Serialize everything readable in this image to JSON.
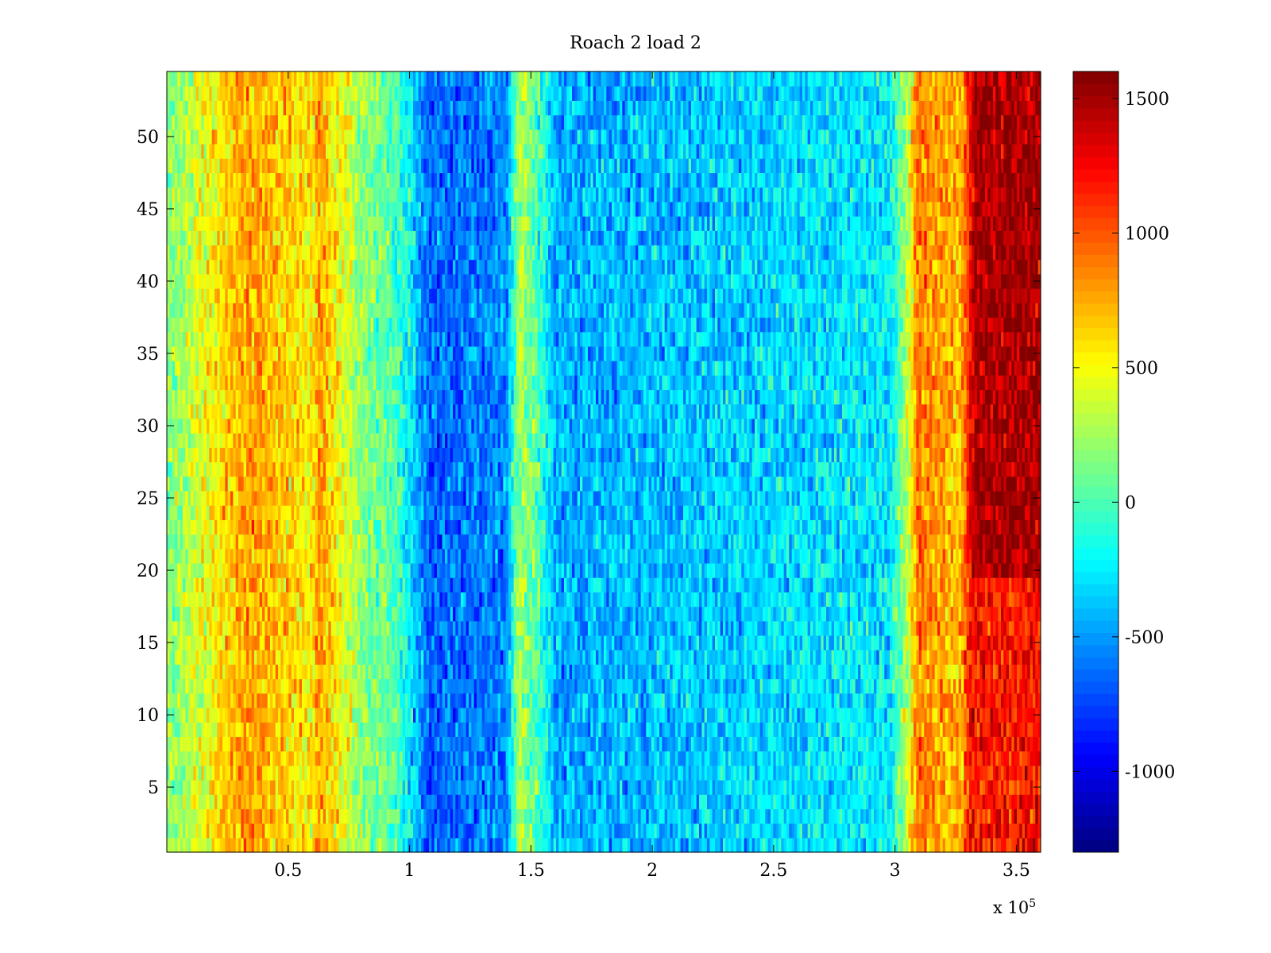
{
  "chart_data": {
    "type": "heatmap",
    "title": "Roach 2 load 2",
    "xlabel": "",
    "ylabel": "",
    "x_multiplier": "x 10",
    "x_multiplier_exponent": "5",
    "xlim": [
      0,
      360000
    ],
    "ylim": [
      0.5,
      54.5
    ],
    "x_ticks": [
      50000,
      100000,
      150000,
      200000,
      250000,
      300000,
      350000
    ],
    "x_tick_labels": [
      "0.5",
      "1",
      "1.5",
      "2",
      "2.5",
      "3",
      "3.5"
    ],
    "y_ticks": [
      5,
      10,
      15,
      20,
      25,
      30,
      35,
      40,
      45,
      50
    ],
    "y_tick_labels": [
      "5",
      "10",
      "15",
      "20",
      "25",
      "30",
      "35",
      "40",
      "45",
      "50"
    ],
    "colorbar": {
      "colormap": "jet",
      "clim": [
        -1300,
        1600
      ],
      "ticks": [
        -1000,
        -500,
        0,
        500,
        1000,
        1500
      ],
      "tick_labels": [
        "-1000",
        "-500",
        "0",
        "500",
        "1000",
        "1500"
      ]
    },
    "rows": 54,
    "band_profile": {
      "description": "approximate mean value by x range (data units), constant along y with noise",
      "x_breaks": [
        0,
        28000,
        33000,
        60000,
        62000,
        80000,
        95000,
        108000,
        140000,
        145000,
        155000,
        160000,
        200000,
        230000,
        260000,
        298000,
        306000,
        309000,
        327000,
        333000,
        360000
      ],
      "means": [
        150,
        700,
        800,
        550,
        800,
        200,
        0,
        -650,
        -550,
        300,
        -100,
        -450,
        -400,
        -350,
        -300,
        -250,
        400,
        900,
        700,
        1500,
        1500
      ]
    },
    "right_band_lower_rows": {
      "y_max": 19,
      "mean": 1200
    }
  }
}
